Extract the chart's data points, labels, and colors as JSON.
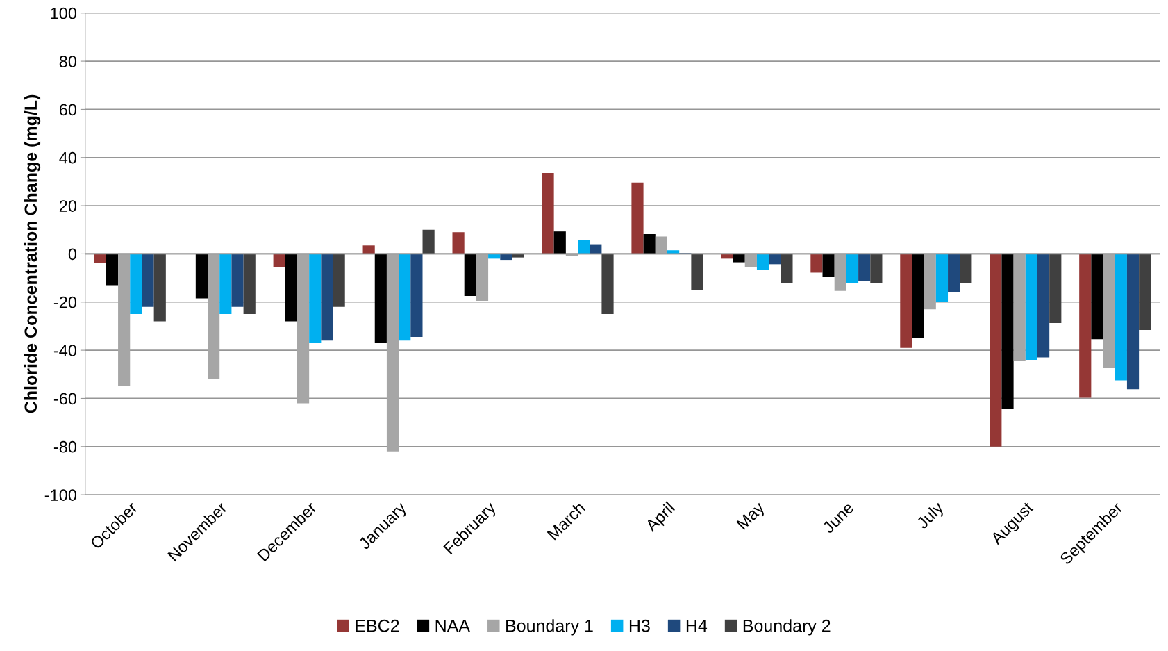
{
  "chart_data": {
    "type": "bar",
    "ylabel": "Chloride Concentration Change (mg/L)",
    "categories": [
      "October",
      "November",
      "December",
      "January",
      "February",
      "March",
      "April",
      "May",
      "June",
      "July",
      "August",
      "September"
    ],
    "series": [
      {
        "name": "EBC2",
        "color": "#953735",
        "values": [
          -3.8,
          0,
          -5.5,
          3.5,
          9,
          33.6,
          29.6,
          -2,
          -7.8,
          -39,
          -80,
          -59.7
        ]
      },
      {
        "name": "NAA",
        "color": "#000000",
        "values": [
          -13,
          -18.5,
          -28,
          -37,
          -17.5,
          9.3,
          8.2,
          -3.5,
          -9.6,
          -35,
          -64.3,
          -35.4
        ]
      },
      {
        "name": "Boundary 1",
        "color": "#a6a6a6",
        "values": [
          -55,
          -52,
          -62,
          -82,
          -19.5,
          -1,
          7.2,
          -5.5,
          -15.4,
          -23,
          -44.6,
          -47.5
        ]
      },
      {
        "name": "H3",
        "color": "#00b0f0",
        "values": [
          -25,
          -25,
          -37,
          -36,
          -2,
          5.8,
          1.5,
          -6.7,
          -12,
          -20,
          -44,
          -52.5
        ]
      },
      {
        "name": "H4",
        "color": "#1f497d",
        "values": [
          -22,
          -22,
          -36,
          -34.5,
          -2.5,
          4,
          0.3,
          -4.3,
          -11.3,
          -16,
          -43,
          -56.2
        ]
      },
      {
        "name": "Boundary 2",
        "color": "#404040",
        "values": [
          -28,
          -25,
          -22,
          10,
          -1.5,
          -25,
          -15,
          -12,
          -12,
          -12,
          -28.7,
          -31.6
        ]
      }
    ],
    "ylim": [
      -100,
      100
    ],
    "yticks": [
      -100,
      -80,
      -60,
      -40,
      -20,
      0,
      20,
      40,
      60,
      80,
      100
    ],
    "grid": "y",
    "legend": "bottom"
  }
}
